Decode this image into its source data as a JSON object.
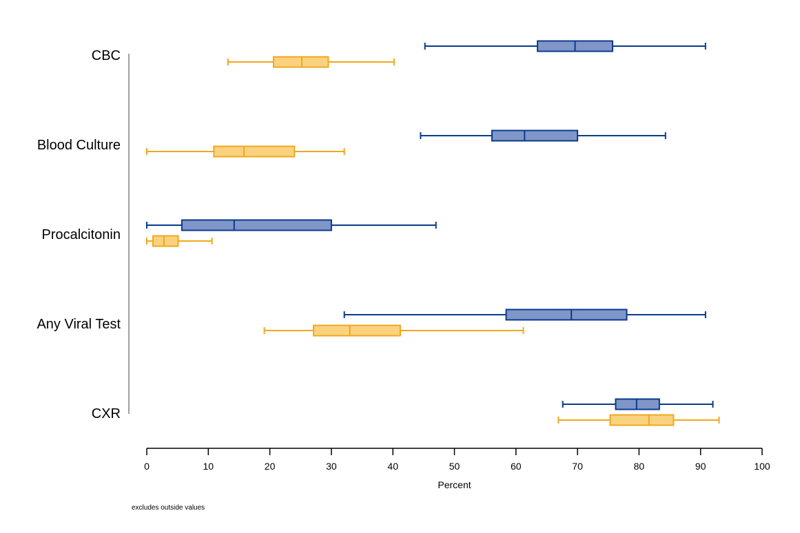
{
  "chart_data": {
    "type": "boxplot",
    "orientation": "horizontal",
    "xlabel": "Percent",
    "xlim": [
      0,
      100
    ],
    "xticks": [
      0,
      10,
      20,
      30,
      40,
      50,
      60,
      70,
      80,
      90,
      100
    ],
    "categories": [
      "CBC",
      "Blood Culture",
      "Procalcitonin",
      "Any Viral Test",
      "CXR"
    ],
    "note": "excludes outside values",
    "grid": false,
    "legend": "none",
    "series": [
      {
        "color": "#0a3a8c",
        "fill": "#8096c8",
        "boxes": [
          {
            "category": "CBC",
            "whisker_low": 45.2,
            "q1": 63.5,
            "median": 69.6,
            "q3": 75.7,
            "whisker_high": 90.8
          },
          {
            "category": "Blood Culture",
            "whisker_low": 44.5,
            "q1": 56.1,
            "median": 61.4,
            "q3": 70.0,
            "whisker_high": 84.3
          },
          {
            "category": "Procalcitonin",
            "whisker_low": 0.0,
            "q1": 5.7,
            "median": 14.2,
            "q3": 30.0,
            "whisker_high": 47.0
          },
          {
            "category": "Any Viral Test",
            "whisker_low": 32.1,
            "q1": 58.4,
            "median": 69.0,
            "q3": 78.0,
            "whisker_high": 90.8
          },
          {
            "category": "CXR",
            "whisker_low": 67.6,
            "q1": 76.2,
            "median": 79.6,
            "q3": 83.3,
            "whisker_high": 92.0
          }
        ]
      },
      {
        "color": "#f0a81c",
        "fill": "#fad27f",
        "boxes": [
          {
            "category": "CBC",
            "whisker_low": 13.2,
            "q1": 20.6,
            "median": 25.2,
            "q3": 29.5,
            "whisker_high": 40.2
          },
          {
            "category": "Blood Culture",
            "whisker_low": 0.0,
            "q1": 10.9,
            "median": 15.8,
            "q3": 24.0,
            "whisker_high": 32.1
          },
          {
            "category": "Procalcitonin",
            "whisker_low": 0.0,
            "q1": 1.0,
            "median": 2.8,
            "q3": 5.1,
            "whisker_high": 10.6
          },
          {
            "category": "Any Viral Test",
            "whisker_low": 19.1,
            "q1": 27.1,
            "median": 33.0,
            "q3": 41.2,
            "whisker_high": 61.2
          },
          {
            "category": "CXR",
            "whisker_low": 66.9,
            "q1": 75.3,
            "median": 81.6,
            "q3": 85.6,
            "whisker_high": 93.0
          }
        ]
      }
    ]
  }
}
